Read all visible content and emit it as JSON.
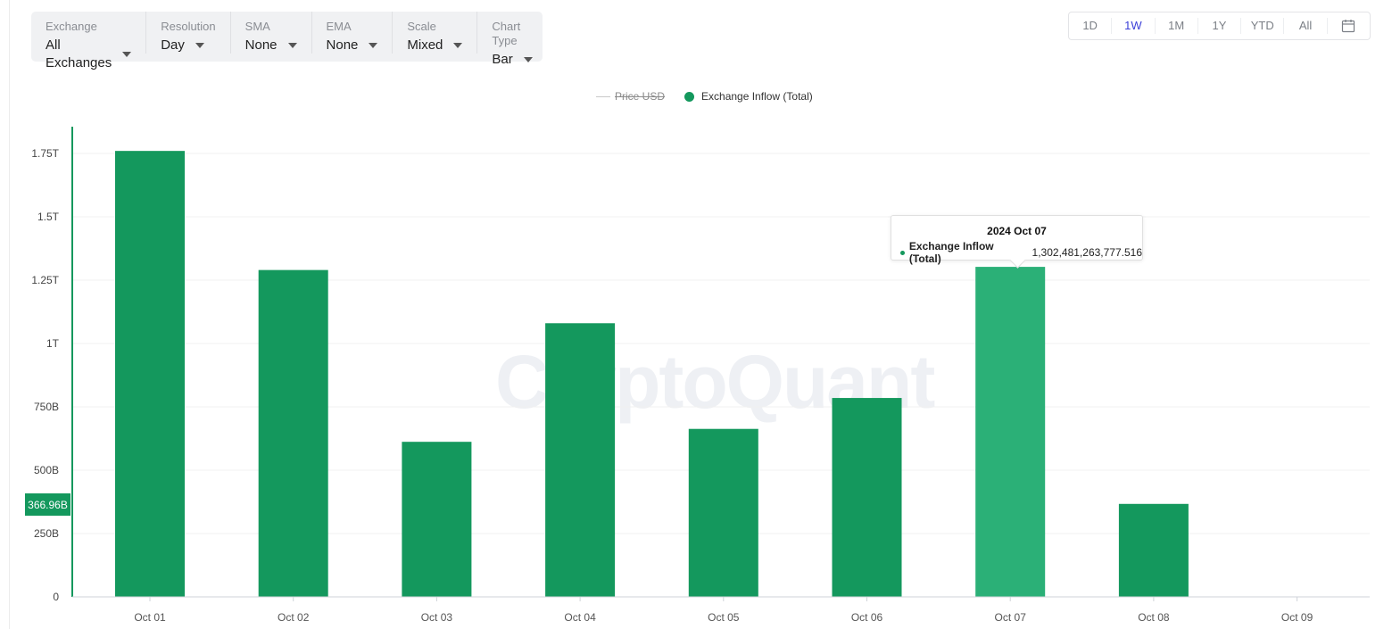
{
  "toolbar": [
    {
      "label": "Exchange",
      "value": "All Exchanges"
    },
    {
      "label": "Resolution",
      "value": "Day"
    },
    {
      "label": "SMA",
      "value": "None"
    },
    {
      "label": "EMA",
      "value": "None"
    },
    {
      "label": "Scale",
      "value": "Mixed"
    },
    {
      "label": "Chart Type",
      "value": "Bar"
    }
  ],
  "range": {
    "buttons": [
      "1D",
      "1W",
      "1M",
      "1Y",
      "YTD",
      "All"
    ],
    "active": "1W",
    "calendar_icon": "calendar-icon"
  },
  "legend": {
    "price": "Price USD",
    "inflow": "Exchange Inflow (Total)"
  },
  "watermark": "CryptoQuant",
  "cursor_value": "366.96B",
  "tooltip": {
    "date": "2024 Oct 07",
    "series": "Exchange Inflow (Total)",
    "value": "1,302,481,263,777.516"
  },
  "colors": {
    "bar": "#14985d",
    "bar_highlight": "#2bb077",
    "accent": "#3b3fd8"
  },
  "chart_data": {
    "type": "bar",
    "categories": [
      "Oct 01",
      "Oct 02",
      "Oct 03",
      "Oct 04",
      "Oct 05",
      "Oct 06",
      "Oct 07",
      "Oct 08",
      "Oct 09"
    ],
    "series": [
      {
        "name": "Exchange Inflow (Total)",
        "values": [
          1760000000000,
          1290000000000,
          612000000000,
          1080000000000,
          663000000000,
          785000000000,
          1302481263777.516,
          366960000000,
          null
        ]
      }
    ],
    "y_ticks": [
      {
        "value": 0,
        "label": "0"
      },
      {
        "value": 250000000000,
        "label": "250B"
      },
      {
        "value": 500000000000,
        "label": "500B"
      },
      {
        "value": 750000000000,
        "label": "750B"
      },
      {
        "value": 1000000000000,
        "label": "1T"
      },
      {
        "value": 1250000000000,
        "label": "1.25T"
      },
      {
        "value": 1500000000000,
        "label": "1.5T"
      },
      {
        "value": 1750000000000,
        "label": "1.75T"
      }
    ],
    "ylim": [
      0,
      1850000000000
    ],
    "highlight_category": "Oct 07",
    "grid": true
  }
}
